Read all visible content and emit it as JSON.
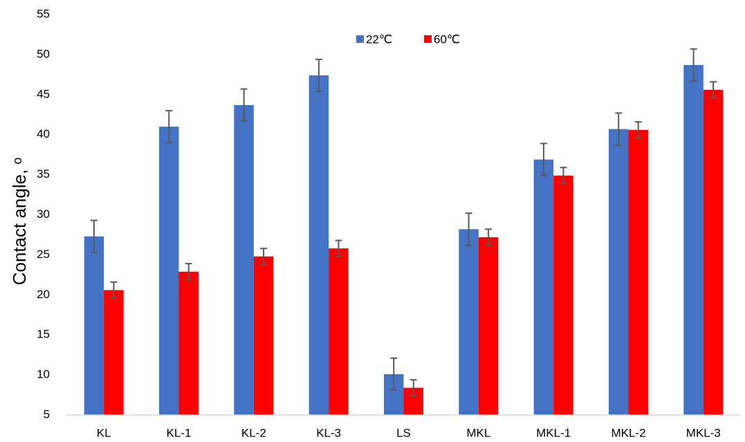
{
  "chart_data": {
    "type": "bar",
    "y_label": "Contact angle, ᵒ",
    "categories": [
      "KL",
      "KL-1",
      "KL-2",
      "KL-3",
      "LS",
      "MKL",
      "MKL-1",
      "MKL-2",
      "MKL-3"
    ],
    "series": [
      {
        "name": "22℃",
        "color": "#4472c4",
        "values": [
          27.3,
          41,
          43.7,
          47.4,
          10.1,
          28.2,
          36.9,
          40.7,
          48.7
        ],
        "errors": [
          2,
          2,
          2,
          2,
          2,
          2,
          2,
          2,
          2
        ]
      },
      {
        "name": "60℃",
        "color": "#ff0000",
        "values": [
          20.6,
          22.9,
          24.8,
          25.8,
          8.4,
          27.2,
          34.9,
          40.6,
          45.6
        ],
        "errors": [
          1,
          1,
          1,
          1,
          1,
          1,
          1,
          1,
          1
        ]
      }
    ],
    "ylim": [
      5,
      55
    ],
    "yticks": [
      5,
      10,
      15,
      20,
      25,
      30,
      35,
      40,
      45,
      50,
      55
    ],
    "grid": false,
    "legend": "top",
    "error_color": "#595959"
  }
}
